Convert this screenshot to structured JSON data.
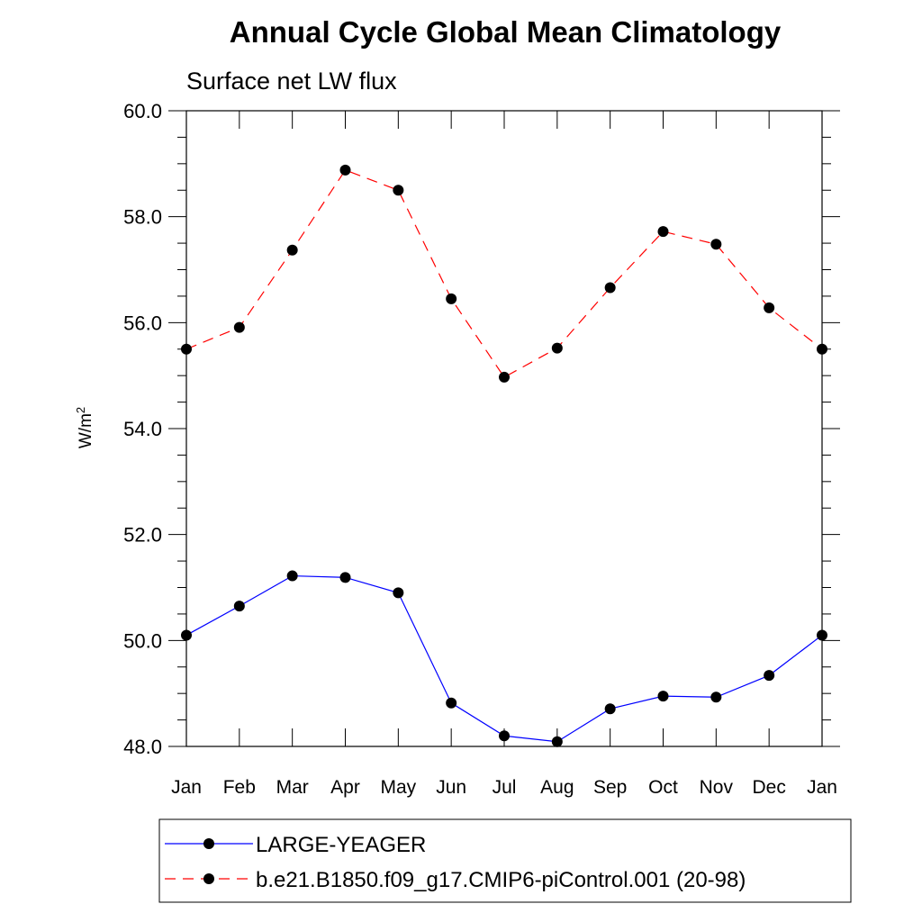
{
  "chart_data": {
    "type": "line",
    "title": "Annual Cycle Global Mean Climatology",
    "subtitle": "Surface net LW flux",
    "ylabel_base": "W/m",
    "ylabel_sup": "2",
    "categories": [
      "Jan",
      "Feb",
      "Mar",
      "Apr",
      "May",
      "Jun",
      "Jul",
      "Aug",
      "Sep",
      "Oct",
      "Nov",
      "Dec",
      "Jan"
    ],
    "ylim": [
      48.0,
      60.0
    ],
    "yticks": [
      "48.0",
      "50.0",
      "52.0",
      "54.0",
      "56.0",
      "58.0",
      "60.0"
    ],
    "grid": false,
    "legend_position": "bottom",
    "series": [
      {
        "name": "LARGE-YEAGER",
        "color": "#0000ff",
        "dash": "solid",
        "values": [
          50.1,
          50.65,
          51.22,
          51.19,
          50.9,
          48.82,
          48.2,
          48.09,
          48.71,
          48.95,
          48.93,
          49.34,
          50.1
        ]
      },
      {
        "name": "b.e21.B1850.f09_g17.CMIP6-piControl.001 (20-98)",
        "color": "#ff0000",
        "dash": "dashed",
        "values": [
          55.5,
          55.91,
          57.37,
          58.88,
          58.5,
          56.45,
          54.97,
          55.52,
          56.66,
          57.72,
          57.48,
          56.28,
          55.5
        ]
      }
    ]
  }
}
